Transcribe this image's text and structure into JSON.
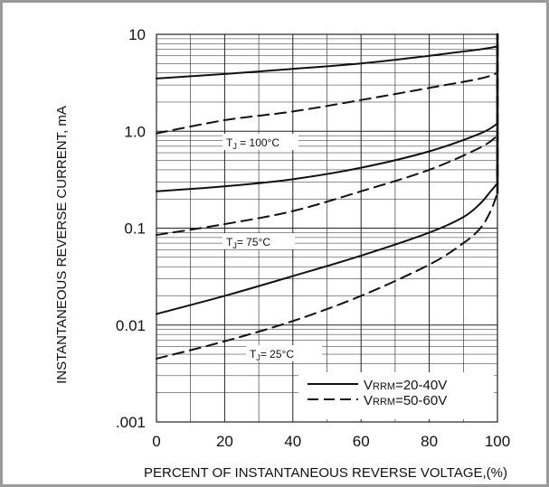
{
  "chart_data": {
    "type": "line",
    "title": "",
    "xlabel": "PERCENT OF INSTANTANEOUS REVERSE VOLTAGE,(%)",
    "ylabel": "INSTANTANEOUS REVERSE CURRENT, mA",
    "xlim": [
      0,
      100
    ],
    "ylim": [
      0.001,
      10
    ],
    "y_scale": "log",
    "grid": true,
    "x_ticks": [
      "0",
      "20",
      "40",
      "60",
      "80",
      "100"
    ],
    "y_ticks": [
      ".001",
      "0.01",
      "0.1",
      "1.0",
      "10"
    ],
    "legend_position": "bottom-right",
    "legend": [
      {
        "style": "solid",
        "prefix": "V",
        "sub": "RRM",
        "suffix": "=20-40V"
      },
      {
        "style": "dashed",
        "prefix": "V",
        "sub": "RRM",
        "suffix": "=50-60V"
      }
    ],
    "annotations": [
      {
        "id": "tj100",
        "prefix": "T",
        "sub": "J",
        "text": " = 100°C"
      },
      {
        "id": "tj75",
        "prefix": "T",
        "sub": "J",
        "text": "= 75°C"
      },
      {
        "id": "tj25",
        "prefix": "T",
        "sub": "J",
        "text": "= 25°C"
      }
    ],
    "series": [
      {
        "group": "100°C",
        "style": "solid",
        "x": [
          0,
          20,
          40,
          60,
          80,
          95,
          100
        ],
        "y": [
          3.5,
          3.9,
          4.4,
          5.0,
          6.0,
          7.0,
          7.5
        ]
      },
      {
        "group": "100°C",
        "style": "dashed",
        "x": [
          0,
          20,
          40,
          60,
          80,
          95,
          100
        ],
        "y": [
          0.95,
          1.3,
          1.6,
          2.1,
          2.8,
          3.5,
          4.0
        ]
      },
      {
        "group": "75°C",
        "style": "solid",
        "x": [
          0,
          20,
          40,
          60,
          80,
          95,
          100
        ],
        "y": [
          0.24,
          0.27,
          0.32,
          0.42,
          0.62,
          0.95,
          1.2
        ]
      },
      {
        "group": "75°C",
        "style": "dashed",
        "x": [
          0,
          20,
          40,
          60,
          80,
          95,
          100
        ],
        "y": [
          0.085,
          0.11,
          0.15,
          0.24,
          0.4,
          0.68,
          0.9
        ]
      },
      {
        "group": "25°C",
        "style": "solid",
        "x": [
          0,
          20,
          40,
          60,
          80,
          90,
          95,
          98,
          100
        ],
        "y": [
          0.013,
          0.02,
          0.032,
          0.052,
          0.09,
          0.13,
          0.18,
          0.24,
          0.29
        ]
      },
      {
        "group": "25°C",
        "style": "dashed",
        "x": [
          0,
          20,
          40,
          60,
          80,
          90,
          95,
          98,
          100
        ],
        "y": [
          0.0045,
          0.0068,
          0.011,
          0.02,
          0.042,
          0.07,
          0.1,
          0.15,
          0.23
        ]
      },
      {
        "group": "breakdown",
        "style": "solid",
        "x": [
          100,
          100
        ],
        "y": [
          0.29,
          10
        ]
      },
      {
        "group": "breakdown",
        "style": "dashed",
        "x": [
          100,
          100
        ],
        "y": [
          0.23,
          10
        ]
      }
    ]
  }
}
